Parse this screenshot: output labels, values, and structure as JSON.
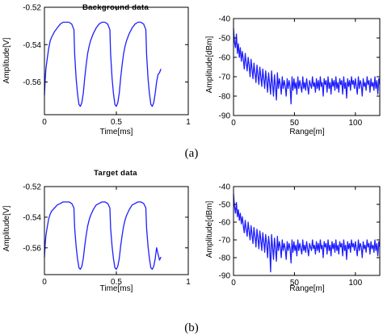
{
  "figure": {
    "captions": [
      "(a)",
      "(b)"
    ]
  },
  "colors": {
    "series": "#1f1fff",
    "axis": "#000000",
    "background": "#ffffff"
  },
  "chart_data": [
    {
      "id": "a-time",
      "type": "line",
      "title": "Background data",
      "xlabel": "Time[ms]",
      "ylabel": "Amplitude[V]",
      "xlim": [
        0,
        1
      ],
      "ylim": [
        -0.5775,
        -0.52
      ],
      "xticks": [
        0,
        0.5,
        1
      ],
      "xtick_labels": [
        "0",
        "0.5",
        "1"
      ],
      "yticks": [
        -0.52,
        -0.54,
        -0.56
      ],
      "ytick_labels": [
        "-0.52",
        "-0.54",
        "-0.56"
      ],
      "grid": false,
      "series": [
        {
          "x": [
            0.0,
            0.005,
            0.01,
            0.02,
            0.03,
            0.04,
            0.05,
            0.07,
            0.09,
            0.11,
            0.13,
            0.15,
            0.17,
            0.19,
            0.205,
            0.21,
            0.22,
            0.23,
            0.24,
            0.25,
            0.26,
            0.27,
            0.28,
            0.29,
            0.3,
            0.31,
            0.32,
            0.34,
            0.36,
            0.38,
            0.4,
            0.42,
            0.44,
            0.455,
            0.46,
            0.47,
            0.48,
            0.49,
            0.5,
            0.51,
            0.52,
            0.53,
            0.54,
            0.55,
            0.56,
            0.57,
            0.59,
            0.61,
            0.63,
            0.65,
            0.67,
            0.69,
            0.705,
            0.71,
            0.72,
            0.73,
            0.74,
            0.75,
            0.76,
            0.77,
            0.78,
            0.79,
            0.8,
            0.81
          ],
          "y": [
            -0.567,
            -0.559,
            -0.553,
            -0.547,
            -0.542,
            -0.538,
            -0.536,
            -0.533,
            -0.531,
            -0.529,
            -0.528,
            -0.528,
            -0.528,
            -0.529,
            -0.532,
            -0.545,
            -0.558,
            -0.566,
            -0.572,
            -0.573,
            -0.571,
            -0.566,
            -0.558,
            -0.551,
            -0.545,
            -0.541,
            -0.538,
            -0.534,
            -0.531,
            -0.529,
            -0.528,
            -0.528,
            -0.529,
            -0.532,
            -0.545,
            -0.558,
            -0.566,
            -0.572,
            -0.573,
            -0.571,
            -0.566,
            -0.558,
            -0.551,
            -0.545,
            -0.541,
            -0.538,
            -0.534,
            -0.531,
            -0.529,
            -0.528,
            -0.528,
            -0.529,
            -0.532,
            -0.545,
            -0.558,
            -0.566,
            -0.572,
            -0.573,
            -0.571,
            -0.566,
            -0.56,
            -0.556,
            -0.555,
            -0.553
          ]
        }
      ]
    },
    {
      "id": "a-range",
      "type": "line",
      "title": "",
      "xlabel": "Range[m]",
      "ylabel": "Amplitude[dBm]",
      "xlim": [
        0,
        120
      ],
      "ylim": [
        -90,
        -40
      ],
      "xticks": [
        0,
        50,
        100
      ],
      "xtick_labels": [
        "0",
        "50",
        "100"
      ],
      "yticks": [
        -40,
        -50,
        -60,
        -70,
        -80,
        -90
      ],
      "ytick_labels": [
        "-40",
        "-50",
        "-60",
        "-70",
        "-80",
        "-90"
      ],
      "grid": false,
      "series": [
        {
          "x": [
            0,
            0.8,
            1.6,
            2.4,
            3.2,
            4,
            4.8,
            5.6,
            6.4,
            7.2,
            8,
            8.8,
            9.6,
            10.4,
            11.2,
            12,
            12.8,
            13.6,
            14.4,
            15.2,
            16,
            16.8,
            17.6,
            18.4,
            19.2,
            20,
            20.8,
            21.6,
            22.4,
            23.2,
            24,
            24.8,
            25.6,
            26.4,
            27.2,
            28,
            28.8,
            29.6,
            30.4,
            31.2,
            32,
            32.8,
            33.6,
            34.4,
            35.2,
            36,
            36.8,
            37.6,
            38.4,
            39.2,
            40,
            40.8,
            41.6,
            42.4,
            43.2,
            44,
            44.8,
            45.6,
            46.4,
            47.2,
            48,
            48.8,
            49.6,
            50.4,
            51.2,
            52,
            52.8,
            53.6,
            54.4,
            55.2,
            56,
            56.8,
            57.6,
            58.4,
            59.2,
            60,
            60.8,
            61.6,
            62.4,
            63.2,
            64,
            64.8,
            65.6,
            66.4,
            67.2,
            68,
            68.8,
            69.6,
            70.4,
            71.2,
            72,
            72.8,
            73.6,
            74.4,
            75.2,
            76,
            76.8,
            77.6,
            78.4,
            79.2,
            80,
            80.8,
            81.6,
            82.4,
            83.2,
            84,
            84.8,
            85.6,
            86.4,
            87.2,
            88,
            88.8,
            89.6,
            90.4,
            91.2,
            92,
            92.8,
            93.6,
            94.4,
            95.2,
            96,
            96.8,
            97.6,
            98.4,
            99.2,
            100,
            100.8,
            101.6,
            102.4,
            103.2,
            104,
            104.8,
            105.6,
            106.4,
            107.2,
            108,
            108.8,
            109.6,
            110.4,
            111.2,
            112,
            112.8,
            113.6,
            114.4,
            115.2,
            116,
            116.8,
            117.6,
            118.4,
            119.2,
            120
          ],
          "y": [
            -45,
            -52,
            -55,
            -48,
            -58,
            -53,
            -60,
            -55,
            -62,
            -57,
            -61,
            -66,
            -58,
            -63,
            -67,
            -60,
            -64,
            -70,
            -61,
            -66,
            -71,
            -63,
            -68,
            -73,
            -64,
            -69,
            -74,
            -65,
            -70,
            -75,
            -66,
            -71,
            -76,
            -67,
            -72,
            -78,
            -68,
            -73,
            -79,
            -67,
            -74,
            -80,
            -69,
            -75,
            -82,
            -68,
            -76,
            -71,
            -74,
            -79,
            -70,
            -76,
            -72,
            -75,
            -80,
            -71,
            -76,
            -72,
            -75,
            -84,
            -70,
            -77,
            -71,
            -76,
            -73,
            -79,
            -70,
            -76,
            -72,
            -75,
            -78,
            -70,
            -76,
            -73,
            -77,
            -71,
            -75,
            -79,
            -72,
            -74,
            -76,
            -70,
            -75,
            -73,
            -78,
            -71,
            -76,
            -72,
            -77,
            -70,
            -75,
            -73,
            -80,
            -71,
            -74,
            -72,
            -78,
            -70,
            -76,
            -73,
            -79,
            -71,
            -75,
            -72,
            -77,
            -70,
            -76,
            -73,
            -78,
            -71,
            -74,
            -72,
            -79,
            -70,
            -76,
            -73,
            -81,
            -71,
            -75,
            -72,
            -77,
            -70,
            -74,
            -72,
            -76,
            -71,
            -75,
            -79,
            -70,
            -76,
            -72,
            -74,
            -80,
            -71,
            -75,
            -73,
            -77,
            -70,
            -74,
            -72,
            -78,
            -71,
            -75,
            -73,
            -77,
            -70,
            -76,
            -72,
            -79,
            -71,
            -74
          ]
        }
      ]
    },
    {
      "id": "b-time",
      "type": "line",
      "title": "Target data",
      "xlabel": "Time[ms]",
      "ylabel": "Amplitude[V]",
      "xlim": [
        0,
        1
      ],
      "ylim": [
        -0.5775,
        -0.52
      ],
      "xticks": [
        0,
        0.5,
        1
      ],
      "xtick_labels": [
        "0",
        "0.5",
        "1"
      ],
      "yticks": [
        -0.52,
        -0.54,
        -0.56
      ],
      "ytick_labels": [
        "-0.52",
        "-0.54",
        "-0.56"
      ],
      "grid": false,
      "series": [
        {
          "x": [
            0.0,
            0.005,
            0.01,
            0.02,
            0.03,
            0.04,
            0.05,
            0.07,
            0.09,
            0.11,
            0.13,
            0.15,
            0.17,
            0.19,
            0.205,
            0.21,
            0.22,
            0.23,
            0.24,
            0.25,
            0.26,
            0.27,
            0.28,
            0.29,
            0.3,
            0.31,
            0.32,
            0.34,
            0.36,
            0.38,
            0.4,
            0.42,
            0.44,
            0.455,
            0.46,
            0.47,
            0.48,
            0.49,
            0.5,
            0.51,
            0.52,
            0.53,
            0.54,
            0.55,
            0.56,
            0.57,
            0.59,
            0.61,
            0.63,
            0.65,
            0.67,
            0.69,
            0.705,
            0.71,
            0.72,
            0.73,
            0.74,
            0.75,
            0.76,
            0.77,
            0.78,
            0.79,
            0.8,
            0.81
          ],
          "y": [
            -0.566,
            -0.558,
            -0.552,
            -0.546,
            -0.541,
            -0.538,
            -0.536,
            -0.534,
            -0.532,
            -0.531,
            -0.53,
            -0.53,
            -0.53,
            -0.531,
            -0.534,
            -0.547,
            -0.559,
            -0.567,
            -0.573,
            -0.574,
            -0.572,
            -0.567,
            -0.559,
            -0.552,
            -0.546,
            -0.542,
            -0.539,
            -0.535,
            -0.532,
            -0.531,
            -0.53,
            -0.53,
            -0.531,
            -0.534,
            -0.547,
            -0.559,
            -0.567,
            -0.573,
            -0.574,
            -0.572,
            -0.567,
            -0.559,
            -0.552,
            -0.546,
            -0.542,
            -0.539,
            -0.535,
            -0.532,
            -0.531,
            -0.53,
            -0.53,
            -0.531,
            -0.534,
            -0.547,
            -0.559,
            -0.567,
            -0.573,
            -0.574,
            -0.572,
            -0.567,
            -0.56,
            -0.564,
            -0.568,
            -0.566
          ]
        }
      ]
    },
    {
      "id": "b-range",
      "type": "line",
      "title": "",
      "xlabel": "Range[m]",
      "ylabel": "Amplitude[dBm]",
      "xlim": [
        0,
        120
      ],
      "ylim": [
        -90,
        -40
      ],
      "xticks": [
        0,
        50,
        100
      ],
      "xtick_labels": [
        "0",
        "50",
        "100"
      ],
      "yticks": [
        -40,
        -50,
        -60,
        -70,
        -80,
        -90
      ],
      "ytick_labels": [
        "-40",
        "-50",
        "-60",
        "-70",
        "-80",
        "-90"
      ],
      "grid": false,
      "series": [
        {
          "x": [
            0,
            0.8,
            1.6,
            2.4,
            3.2,
            4,
            4.8,
            5.6,
            6.4,
            7.2,
            8,
            8.8,
            9.6,
            10.4,
            11.2,
            12,
            12.8,
            13.6,
            14.4,
            15.2,
            16,
            16.8,
            17.6,
            18.4,
            19.2,
            20,
            20.8,
            21.6,
            22.4,
            23.2,
            24,
            24.8,
            25.6,
            26.4,
            27.2,
            28,
            28.8,
            29.6,
            30.4,
            31.2,
            32,
            32.8,
            33.6,
            34.4,
            35.2,
            36,
            36.8,
            37.6,
            38.4,
            39.2,
            40,
            40.8,
            41.6,
            42.4,
            43.2,
            44,
            44.8,
            45.6,
            46.4,
            47.2,
            48,
            48.8,
            49.6,
            50.4,
            51.2,
            52,
            52.8,
            53.6,
            54.4,
            55.2,
            56,
            56.8,
            57.6,
            58.4,
            59.2,
            60,
            60.8,
            61.6,
            62.4,
            63.2,
            64,
            64.8,
            65.6,
            66.4,
            67.2,
            68,
            68.8,
            69.6,
            70.4,
            71.2,
            72,
            72.8,
            73.6,
            74.4,
            75.2,
            76,
            76.8,
            77.6,
            78.4,
            79.2,
            80,
            80.8,
            81.6,
            82.4,
            83.2,
            84,
            84.8,
            85.6,
            86.4,
            87.2,
            88,
            88.8,
            89.6,
            90.4,
            91.2,
            92,
            92.8,
            93.6,
            94.4,
            95.2,
            96,
            96.8,
            97.6,
            98.4,
            99.2,
            100,
            100.8,
            101.6,
            102.4,
            103.2,
            104,
            104.8,
            105.6,
            106.4,
            107.2,
            108,
            108.8,
            109.6,
            110.4,
            111.2,
            112,
            112.8,
            113.6,
            114.4,
            115.2,
            116,
            116.8,
            117.6,
            118.4,
            119.2,
            120
          ],
          "y": [
            -44,
            -51,
            -55,
            -49,
            -57,
            -53,
            -59,
            -55,
            -61,
            -57,
            -62,
            -66,
            -59,
            -64,
            -68,
            -60,
            -65,
            -70,
            -62,
            -67,
            -72,
            -63,
            -68,
            -74,
            -64,
            -69,
            -75,
            -65,
            -70,
            -76,
            -66,
            -71,
            -77,
            -67,
            -72,
            -80,
            -68,
            -73,
            -88,
            -67,
            -74,
            -81,
            -69,
            -75,
            -82,
            -68,
            -76,
            -71,
            -74,
            -80,
            -70,
            -76,
            -72,
            -75,
            -81,
            -71,
            -76,
            -72,
            -75,
            -83,
            -70,
            -77,
            -71,
            -76,
            -73,
            -79,
            -70,
            -76,
            -72,
            -75,
            -78,
            -70,
            -76,
            -73,
            -77,
            -71,
            -75,
            -79,
            -72,
            -74,
            -76,
            -70,
            -75,
            -73,
            -78,
            -71,
            -76,
            -72,
            -77,
            -70,
            -75,
            -73,
            -80,
            -71,
            -74,
            -72,
            -78,
            -70,
            -76,
            -73,
            -79,
            -71,
            -75,
            -72,
            -77,
            -70,
            -76,
            -73,
            -78,
            -71,
            -74,
            -72,
            -79,
            -70,
            -76,
            -73,
            -81,
            -71,
            -75,
            -72,
            -77,
            -70,
            -74,
            -72,
            -76,
            -71,
            -75,
            -79,
            -70,
            -76,
            -72,
            -74,
            -80,
            -71,
            -75,
            -73,
            -77,
            -70,
            -74,
            -72,
            -78,
            -71,
            -75,
            -73,
            -77,
            -70,
            -76,
            -72,
            -79,
            -71,
            -74
          ]
        }
      ]
    }
  ]
}
